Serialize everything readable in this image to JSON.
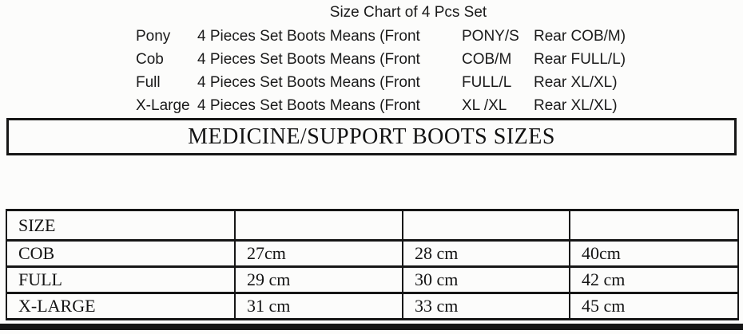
{
  "page": {
    "background": "#fcfcfb",
    "text_color": "#1b1b1b",
    "border_color": "#161616"
  },
  "size_chart": {
    "title": "Size Chart of 4 Pcs Set",
    "rows": [
      {
        "label": "Pony",
        "desc": "4 Pieces Set Boots Means (Front",
        "front": "PONY/S",
        "rear": "Rear COB/M)"
      },
      {
        "label": "Cob",
        "desc": "4 Pieces Set Boots Means (Front",
        "front": "COB/M",
        "rear": "Rear FULL/L)"
      },
      {
        "label": "Full",
        "desc": "4 Pieces Set Boots Means (Front",
        "front": "FULL/L",
        "rear": "Rear XL/XL)"
      },
      {
        "label": "X-Large",
        "desc": "4 Pieces Set Boots Means (Front",
        "front": "XL /XL",
        "rear": "Rear XL/XL)"
      }
    ]
  },
  "banner": {
    "title": "MEDICINE/SUPPORT BOOTS SIZES"
  },
  "size_table": {
    "header": [
      "SIZE",
      "",
      "",
      ""
    ],
    "rows": [
      [
        "COB",
        "27cm",
        "28 cm",
        "40cm"
      ],
      [
        "FULL",
        "29 cm",
        "30 cm",
        "42 cm"
      ],
      [
        "X-LARGE",
        "31 cm",
        "33 cm",
        "45 cm"
      ]
    ]
  }
}
